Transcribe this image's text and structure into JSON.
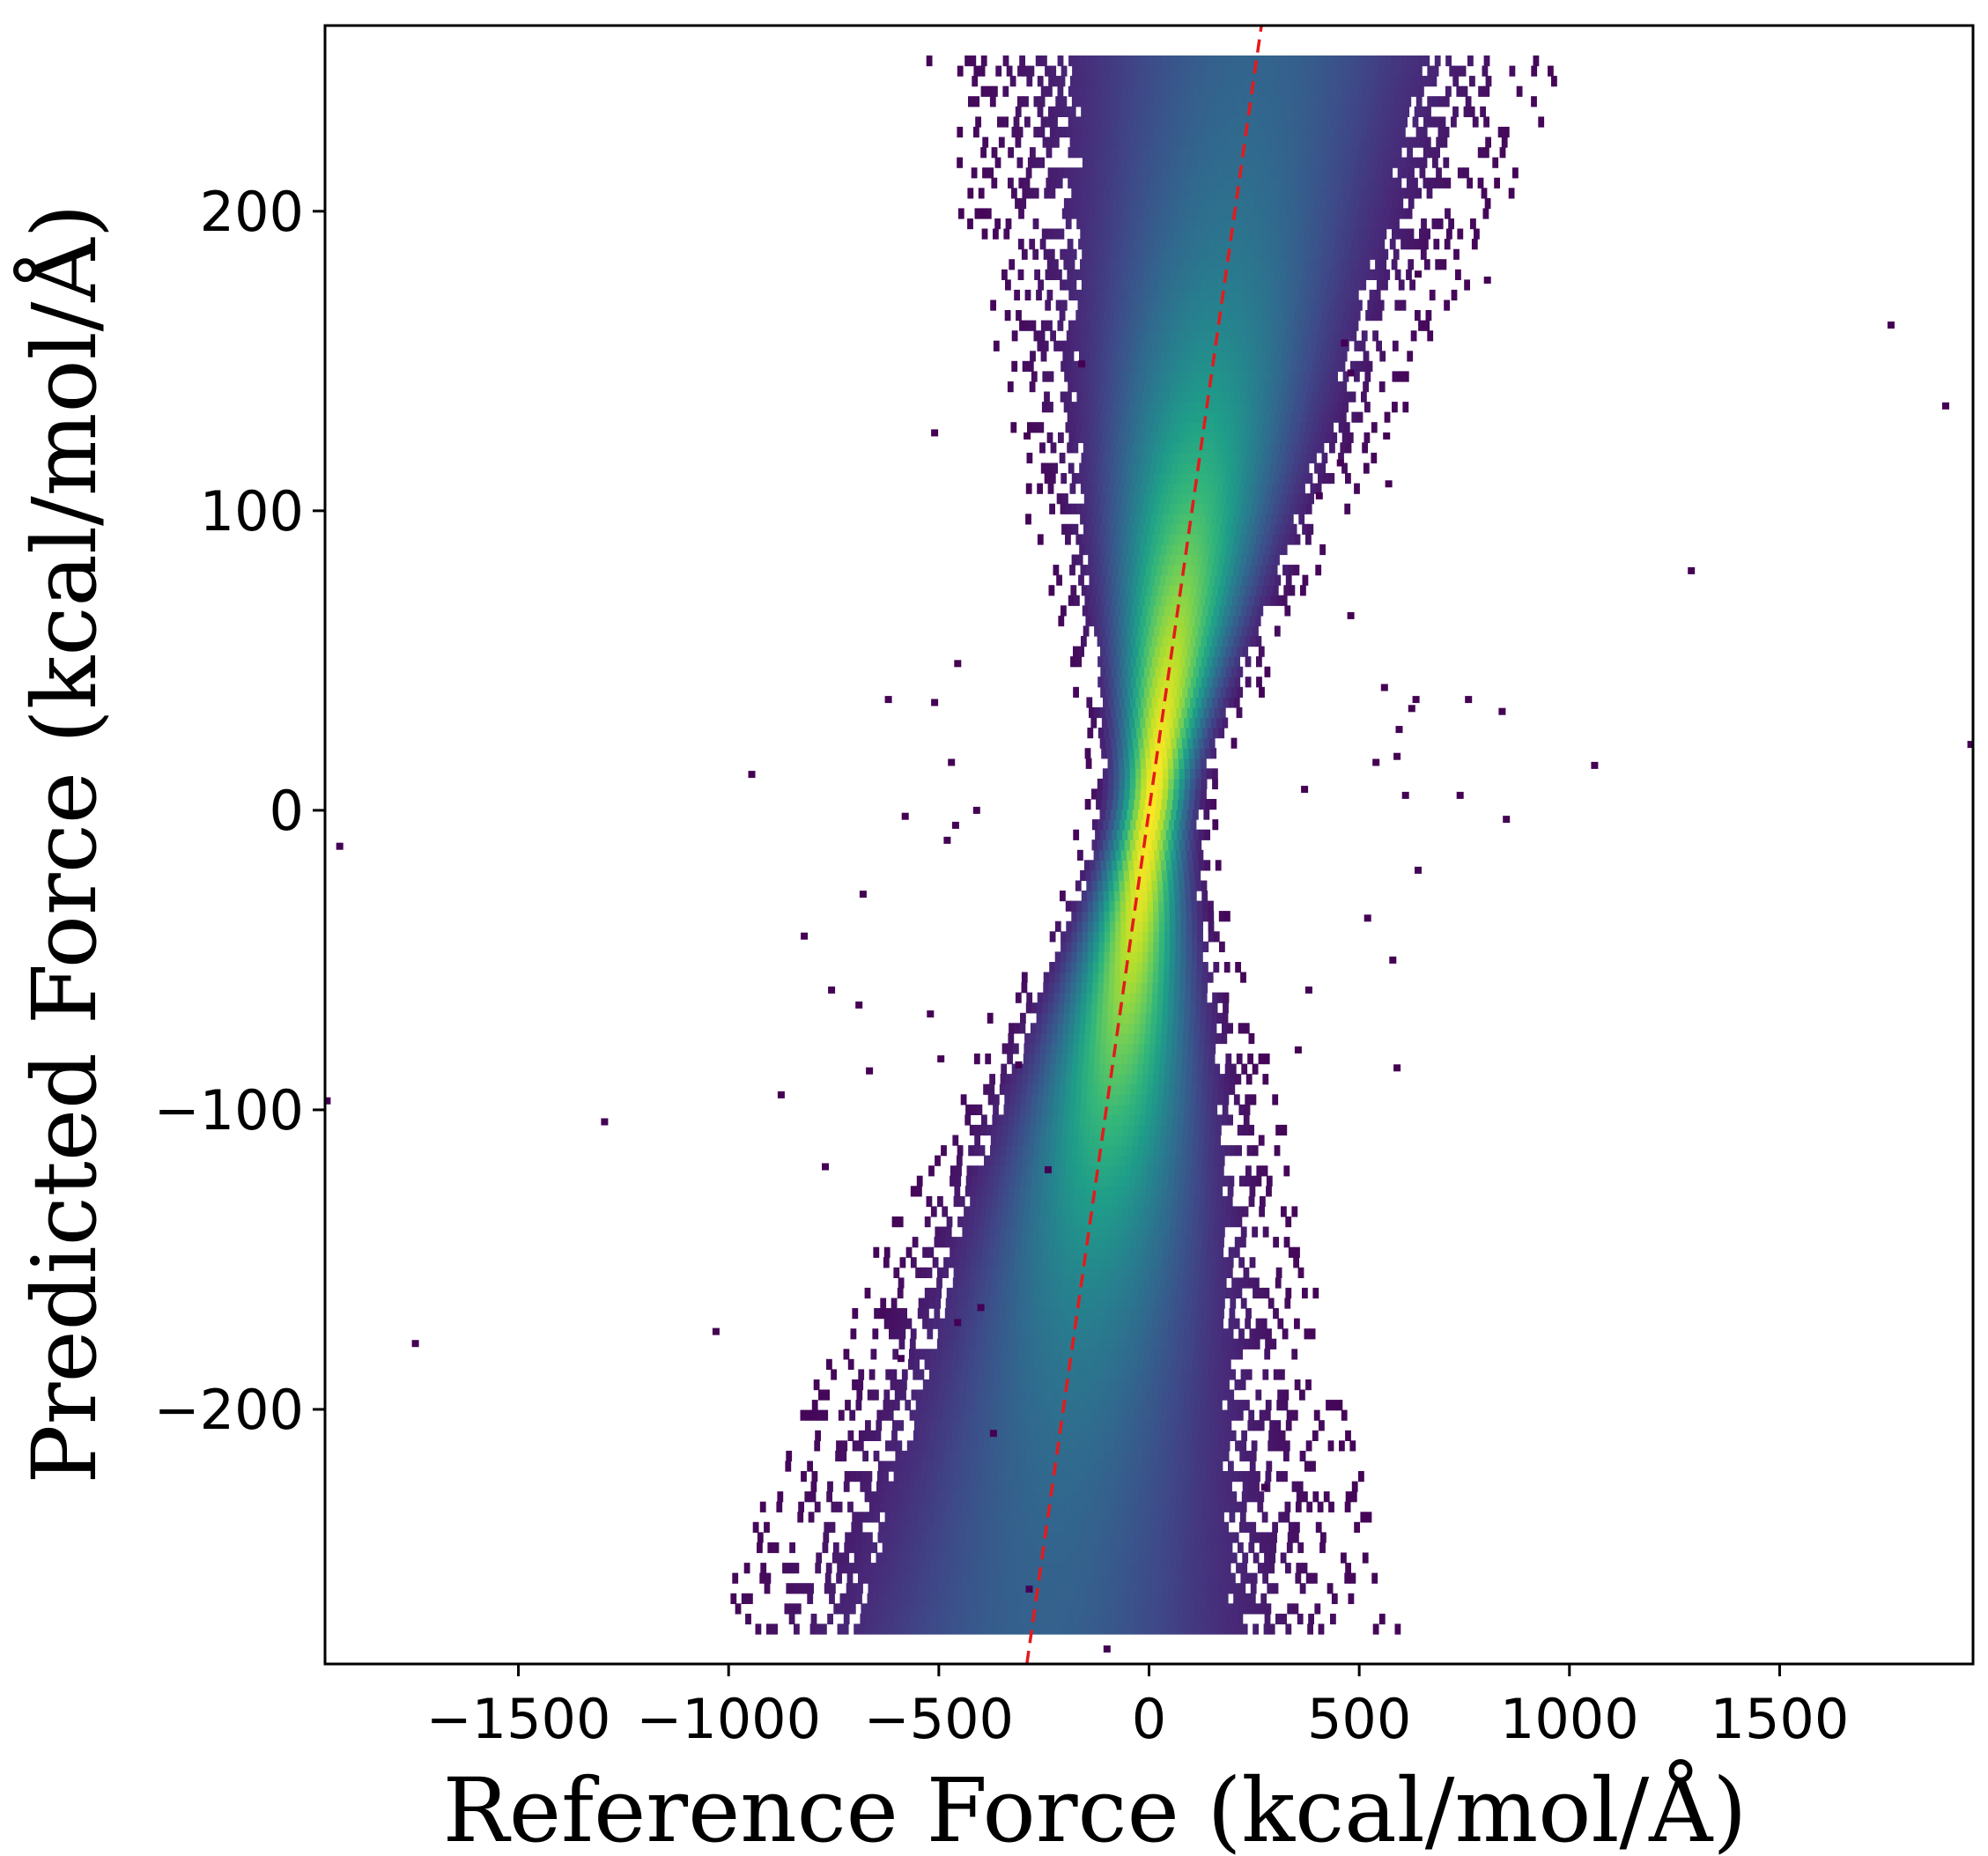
{
  "chart_data": {
    "type": "heatmap",
    "subtype": "2d-histogram (density scatter)",
    "title": "",
    "xlabel": "Reference Force (kcal/mol/Å)",
    "ylabel": "Predicted Force (kcal/mol/Å)",
    "xlim": [
      -1960,
      1960
    ],
    "ylim": [
      -285,
      262
    ],
    "xticks": [
      -1500,
      -1000,
      -500,
      0,
      500,
      1000,
      1500
    ],
    "xtick_labels": [
      "−1500",
      "−1000",
      "−500",
      "0",
      "500",
      "1000",
      "1500"
    ],
    "yticks": [
      -200,
      -100,
      0,
      100,
      200
    ],
    "ytick_labels": [
      "−200",
      "−100",
      "0",
      "100",
      "200"
    ],
    "colormap": "viridis",
    "colors": [
      "#440154",
      "#3b528b",
      "#21918c",
      "#5ec962",
      "#fde725"
    ],
    "grid": false,
    "legend": "none",
    "reference_line": {
      "style": "dashed",
      "color": "#e41a1c",
      "points": [
        [
          -285,
          -285
        ],
        [
          262,
          262
        ]
      ]
    },
    "core_distribution": {
      "description_level": "elongated density cloud along the diagonal",
      "center": [
        0,
        0
      ],
      "ridge_points": [
        [
          -220,
          -230
        ],
        [
          -150,
          -150
        ],
        [
          -70,
          -70
        ],
        [
          0,
          0
        ],
        [
          70,
          70
        ],
        [
          150,
          150
        ],
        [
          230,
          230
        ]
      ]
    },
    "outliers": [
      [
        -1925,
        -12
      ],
      [
        -1955,
        -97
      ],
      [
        -1745,
        -178
      ],
      [
        -1295,
        -104
      ],
      [
        -1030,
        -174
      ],
      [
        -945,
        12
      ],
      [
        -875,
        -95
      ],
      [
        -820,
        -42
      ],
      [
        -770,
        -119
      ],
      [
        -755,
        -60
      ],
      [
        -690,
        -65
      ],
      [
        -680,
        -28
      ],
      [
        -665,
        -87
      ],
      [
        -620,
        37
      ],
      [
        -590,
        -183
      ],
      [
        -580,
        -2
      ],
      [
        -510,
        36
      ],
      [
        -520,
        -68
      ],
      [
        -480,
        -10
      ],
      [
        -460,
        -5
      ],
      [
        -455,
        49
      ],
      [
        -455,
        -171
      ],
      [
        -470,
        16
      ],
      [
        -410,
        0
      ],
      [
        -400,
        -166
      ],
      [
        -370,
        -208
      ],
      [
        -290,
        125
      ],
      [
        -285,
        -260
      ],
      [
        -510,
        126
      ],
      [
        -495,
        -83
      ],
      [
        -310,
        -85
      ],
      [
        -240,
        -120
      ],
      [
        -160,
        149
      ],
      [
        -100,
        -280
      ],
      [
        275,
        -226
      ],
      [
        355,
        -80
      ],
      [
        465,
        156
      ],
      [
        370,
        7
      ],
      [
        380,
        -60
      ],
      [
        455,
        116
      ],
      [
        480,
        65
      ],
      [
        405,
        105
      ],
      [
        520,
        -36
      ],
      [
        540,
        16
      ],
      [
        560,
        41
      ],
      [
        580,
        -50
      ],
      [
        590,
        18
      ],
      [
        595,
        27
      ],
      [
        590,
        -86
      ],
      [
        635,
        37
      ],
      [
        610,
        5
      ],
      [
        640,
        -20
      ],
      [
        740,
        5
      ],
      [
        760,
        37
      ],
      [
        840,
        33
      ],
      [
        850,
        -3
      ],
      [
        805,
        177
      ],
      [
        1060,
        15
      ],
      [
        1290,
        80
      ],
      [
        1765,
        162
      ],
      [
        1895,
        135
      ],
      [
        1955,
        22
      ],
      [
        640,
        179
      ],
      [
        565,
        125
      ],
      [
        570,
        109
      ],
      [
        625,
        34
      ],
      [
        480,
        146
      ]
    ]
  }
}
